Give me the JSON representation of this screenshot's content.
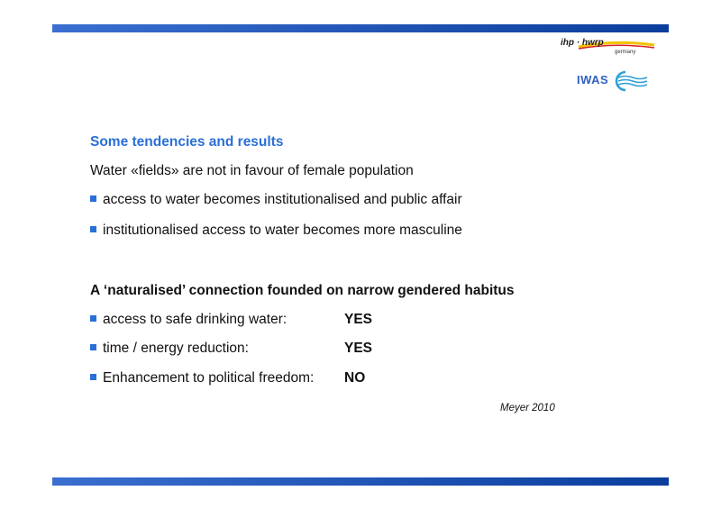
{
  "logos": {
    "ihp_name": "ihp · hwrp",
    "ihp_sub": "germany",
    "iwas_name": "IWAS",
    "ihp_swoosh_colors": [
      "#f2c200",
      "#d61f26"
    ],
    "iwas_wave_color": "#2f9fd8"
  },
  "colors": {
    "bar": "#1d4fb3",
    "accent_blue": "#2a6fd8"
  },
  "section1": {
    "heading": "Some tendencies and results",
    "lead": "Water «fields» are not in favour of female population",
    "bullets": [
      "access to water becomes institutionalised and public affair",
      "institutionalised access to water becomes more masculine"
    ]
  },
  "section2": {
    "heading": "A ‘naturalised’ connection founded on narrow gendered habitus",
    "items": [
      {
        "label": "access to safe drinking water:",
        "answer": "YES"
      },
      {
        "label": "time / energy reduction:",
        "answer": "YES"
      },
      {
        "label": "Enhancement to political freedom:",
        "answer": "NO"
      }
    ]
  },
  "citation": "Meyer 2010"
}
